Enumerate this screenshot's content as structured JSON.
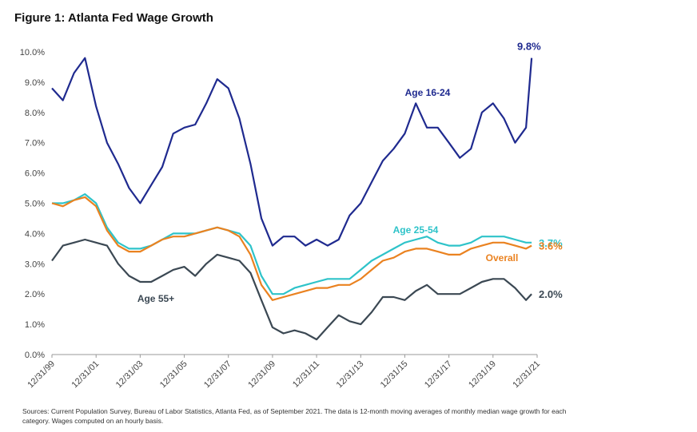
{
  "chart_data": {
    "type": "line",
    "title": "Figure 1: Atlanta Fed Wage Growth",
    "source": "Sources: Current Population Survey, Bureau of Labor Statistics, Atlanta Fed, as of September 2021. The data is 12-month moving averages of monthly median wage growth for each category. Wages computed on an hourly basis.",
    "x": [
      "1999-12-31",
      "2000-06-30",
      "2000-12-31",
      "2001-06-30",
      "2001-12-31",
      "2002-06-30",
      "2002-12-31",
      "2003-06-30",
      "2003-12-31",
      "2004-06-30",
      "2004-12-31",
      "2005-06-30",
      "2005-12-31",
      "2006-06-30",
      "2006-12-31",
      "2007-06-30",
      "2007-12-31",
      "2008-06-30",
      "2008-12-31",
      "2009-06-30",
      "2009-12-31",
      "2010-06-30",
      "2010-12-31",
      "2011-06-30",
      "2011-12-31",
      "2012-06-30",
      "2012-12-31",
      "2013-06-30",
      "2013-12-31",
      "2014-06-30",
      "2014-12-31",
      "2015-06-30",
      "2015-12-31",
      "2016-06-30",
      "2016-12-31",
      "2017-06-30",
      "2017-12-31",
      "2018-06-30",
      "2018-12-31",
      "2019-06-30",
      "2019-12-31",
      "2020-06-30",
      "2020-12-31",
      "2021-06-30",
      "2021-09-30"
    ],
    "xlim": [
      "1999-12-31",
      "2021-12-31"
    ],
    "xticks": [
      {
        "value": "1999-12-31",
        "label": "12/31/99"
      },
      {
        "value": "2001-12-31",
        "label": "12/31/01"
      },
      {
        "value": "2003-12-31",
        "label": "12/31/03"
      },
      {
        "value": "2005-12-31",
        "label": "12/31/05"
      },
      {
        "value": "2007-12-31",
        "label": "12/31/07"
      },
      {
        "value": "2009-12-31",
        "label": "12/31/09"
      },
      {
        "value": "2011-12-31",
        "label": "12/31/11"
      },
      {
        "value": "2013-12-31",
        "label": "12/31/13"
      },
      {
        "value": "2015-12-31",
        "label": "12/31/15"
      },
      {
        "value": "2017-12-31",
        "label": "12/31/17"
      },
      {
        "value": "2019-12-31",
        "label": "12/31/19"
      },
      {
        "value": "2021-12-31",
        "label": "12/31/21"
      }
    ],
    "ylim": [
      0,
      10
    ],
    "yticks": [
      {
        "value": 0,
        "label": "0.0%"
      },
      {
        "value": 1,
        "label": "1.0%"
      },
      {
        "value": 2,
        "label": "2.0%"
      },
      {
        "value": 3,
        "label": "3.0%"
      },
      {
        "value": 4,
        "label": "4.0%"
      },
      {
        "value": 5,
        "label": "5.0%"
      },
      {
        "value": 6,
        "label": "6.0%"
      },
      {
        "value": 7,
        "label": "7.0%"
      },
      {
        "value": 8,
        "label": "8.0%"
      },
      {
        "value": 9,
        "label": "9.0%"
      },
      {
        "value": 10,
        "label": "10.0%"
      }
    ],
    "series": [
      {
        "name": "Age 16-24",
        "color": "#1f2a8f",
        "end_label": "9.8%",
        "values": [
          8.8,
          8.4,
          9.3,
          9.8,
          8.2,
          7.0,
          6.3,
          5.5,
          5.0,
          5.6,
          6.2,
          7.3,
          7.5,
          7.6,
          8.3,
          9.1,
          8.8,
          7.8,
          6.3,
          4.5,
          3.6,
          3.9,
          3.9,
          3.6,
          3.8,
          3.6,
          3.8,
          4.6,
          5.0,
          5.7,
          6.4,
          6.8,
          7.3,
          8.3,
          7.5,
          7.5,
          7.0,
          6.5,
          6.8,
          8.0,
          8.3,
          7.8,
          7.0,
          7.5,
          9.8
        ]
      },
      {
        "name": "Age 25-54",
        "color": "#2ec3c9",
        "end_label": "3.7%",
        "values": [
          5.0,
          5.0,
          5.1,
          5.3,
          5.0,
          4.2,
          3.7,
          3.5,
          3.5,
          3.6,
          3.8,
          4.0,
          4.0,
          4.0,
          4.1,
          4.2,
          4.1,
          4.0,
          3.6,
          2.6,
          2.0,
          2.0,
          2.2,
          2.3,
          2.4,
          2.5,
          2.5,
          2.5,
          2.8,
          3.1,
          3.3,
          3.5,
          3.7,
          3.8,
          3.9,
          3.7,
          3.6,
          3.6,
          3.7,
          3.9,
          3.9,
          3.9,
          3.8,
          3.7,
          3.7
        ]
      },
      {
        "name": "Overall",
        "color": "#ea8220",
        "end_label": "3.6%",
        "values": [
          5.0,
          4.9,
          5.1,
          5.2,
          4.9,
          4.1,
          3.6,
          3.4,
          3.4,
          3.6,
          3.8,
          3.9,
          3.9,
          4.0,
          4.1,
          4.2,
          4.1,
          3.9,
          3.3,
          2.3,
          1.8,
          1.9,
          2.0,
          2.1,
          2.2,
          2.2,
          2.3,
          2.3,
          2.5,
          2.8,
          3.1,
          3.2,
          3.4,
          3.5,
          3.5,
          3.4,
          3.3,
          3.3,
          3.5,
          3.6,
          3.7,
          3.7,
          3.6,
          3.5,
          3.6
        ]
      },
      {
        "name": "Age 55+",
        "color": "#3b4853",
        "end_label": "2.0%",
        "values": [
          3.1,
          3.6,
          3.7,
          3.8,
          3.7,
          3.6,
          3.0,
          2.6,
          2.4,
          2.4,
          2.6,
          2.8,
          2.9,
          2.6,
          3.0,
          3.3,
          3.2,
          3.1,
          2.7,
          1.8,
          0.9,
          0.7,
          0.8,
          0.7,
          0.5,
          0.9,
          1.3,
          1.1,
          1.0,
          1.4,
          1.9,
          1.9,
          1.8,
          2.1,
          2.3,
          2.0,
          2.0,
          2.0,
          2.2,
          2.4,
          2.5,
          2.5,
          2.2,
          1.8,
          2.0
        ]
      }
    ]
  }
}
